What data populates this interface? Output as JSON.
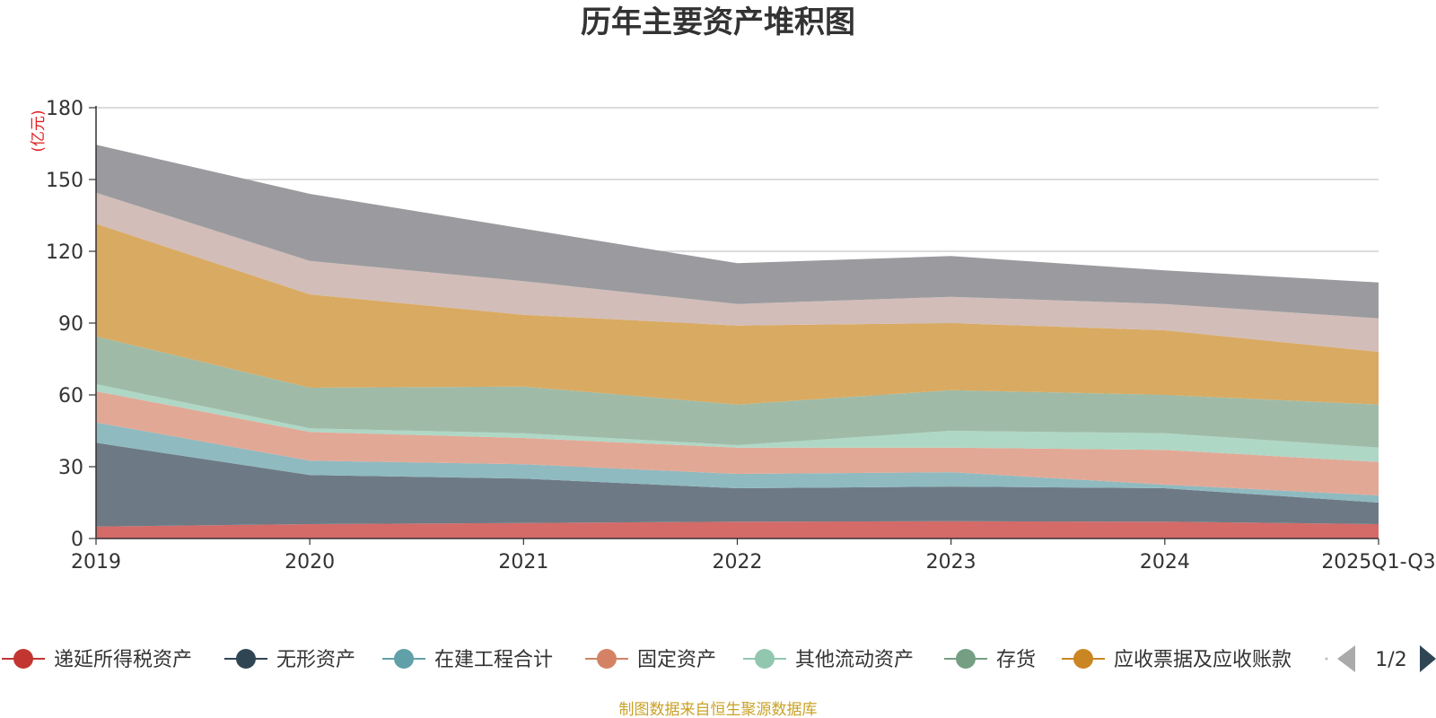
{
  "chart_data": {
    "type": "area",
    "stacked": true,
    "title": "历年主要资产堆积图",
    "yunit": "(亿元)",
    "categories": [
      "2019",
      "2020",
      "2021",
      "2022",
      "2023",
      "2024",
      "2025Q1-Q3"
    ],
    "ylim": [
      0,
      180
    ],
    "yticks": [
      0,
      30,
      60,
      90,
      120,
      150,
      180
    ],
    "grid": true,
    "series": [
      {
        "name": "递延所得税资产",
        "color": "#c23531",
        "fill": "#d46b69",
        "values": [
          5,
          6,
          6.5,
          7,
          7.2,
          7,
          6
        ]
      },
      {
        "name": "无形资产",
        "color": "#2f4554",
        "fill": "#6d7a85",
        "values": [
          35,
          20.5,
          18.5,
          14,
          14.5,
          14,
          9
        ]
      },
      {
        "name": "在建工程合计",
        "color": "#61a0a8",
        "fill": "#8fbac0",
        "values": [
          8.5,
          6,
          6,
          6,
          6,
          1.5,
          3
        ]
      },
      {
        "name": "固定资产",
        "color": "#d48265",
        "fill": "#e2a896",
        "values": [
          13,
          12,
          11,
          11,
          10.3,
          14.5,
          14
        ]
      },
      {
        "name": "其他流动资产",
        "color": "#91c7ae",
        "fill": "#afd7c5",
        "values": [
          3,
          1.5,
          2,
          1,
          7,
          7,
          6
        ]
      },
      {
        "name": "存货",
        "color": "#749f83",
        "fill": "#9fbba7",
        "values": [
          20,
          17,
          19.5,
          17,
          17,
          16,
          18
        ]
      },
      {
        "name": "应收票据及应收账款",
        "color": "#ca8622",
        "fill": "#d9aa62",
        "values": [
          47,
          39,
          30,
          33,
          28,
          27,
          22
        ]
      },
      {
        "name": "",
        "color": "#bda29a",
        "fill": "#d2bdb8",
        "values": [
          13,
          14,
          14,
          9,
          11,
          11,
          14
        ]
      },
      {
        "name": "",
        "color": "#6e7074",
        "fill": "#9b9b9f",
        "values": [
          20,
          28,
          22,
          17,
          17,
          14,
          15
        ]
      }
    ],
    "legend": {
      "position": "bottom",
      "page": "1/2"
    }
  },
  "footer": {
    "source": "制图数据来自恒生聚源数据库"
  }
}
